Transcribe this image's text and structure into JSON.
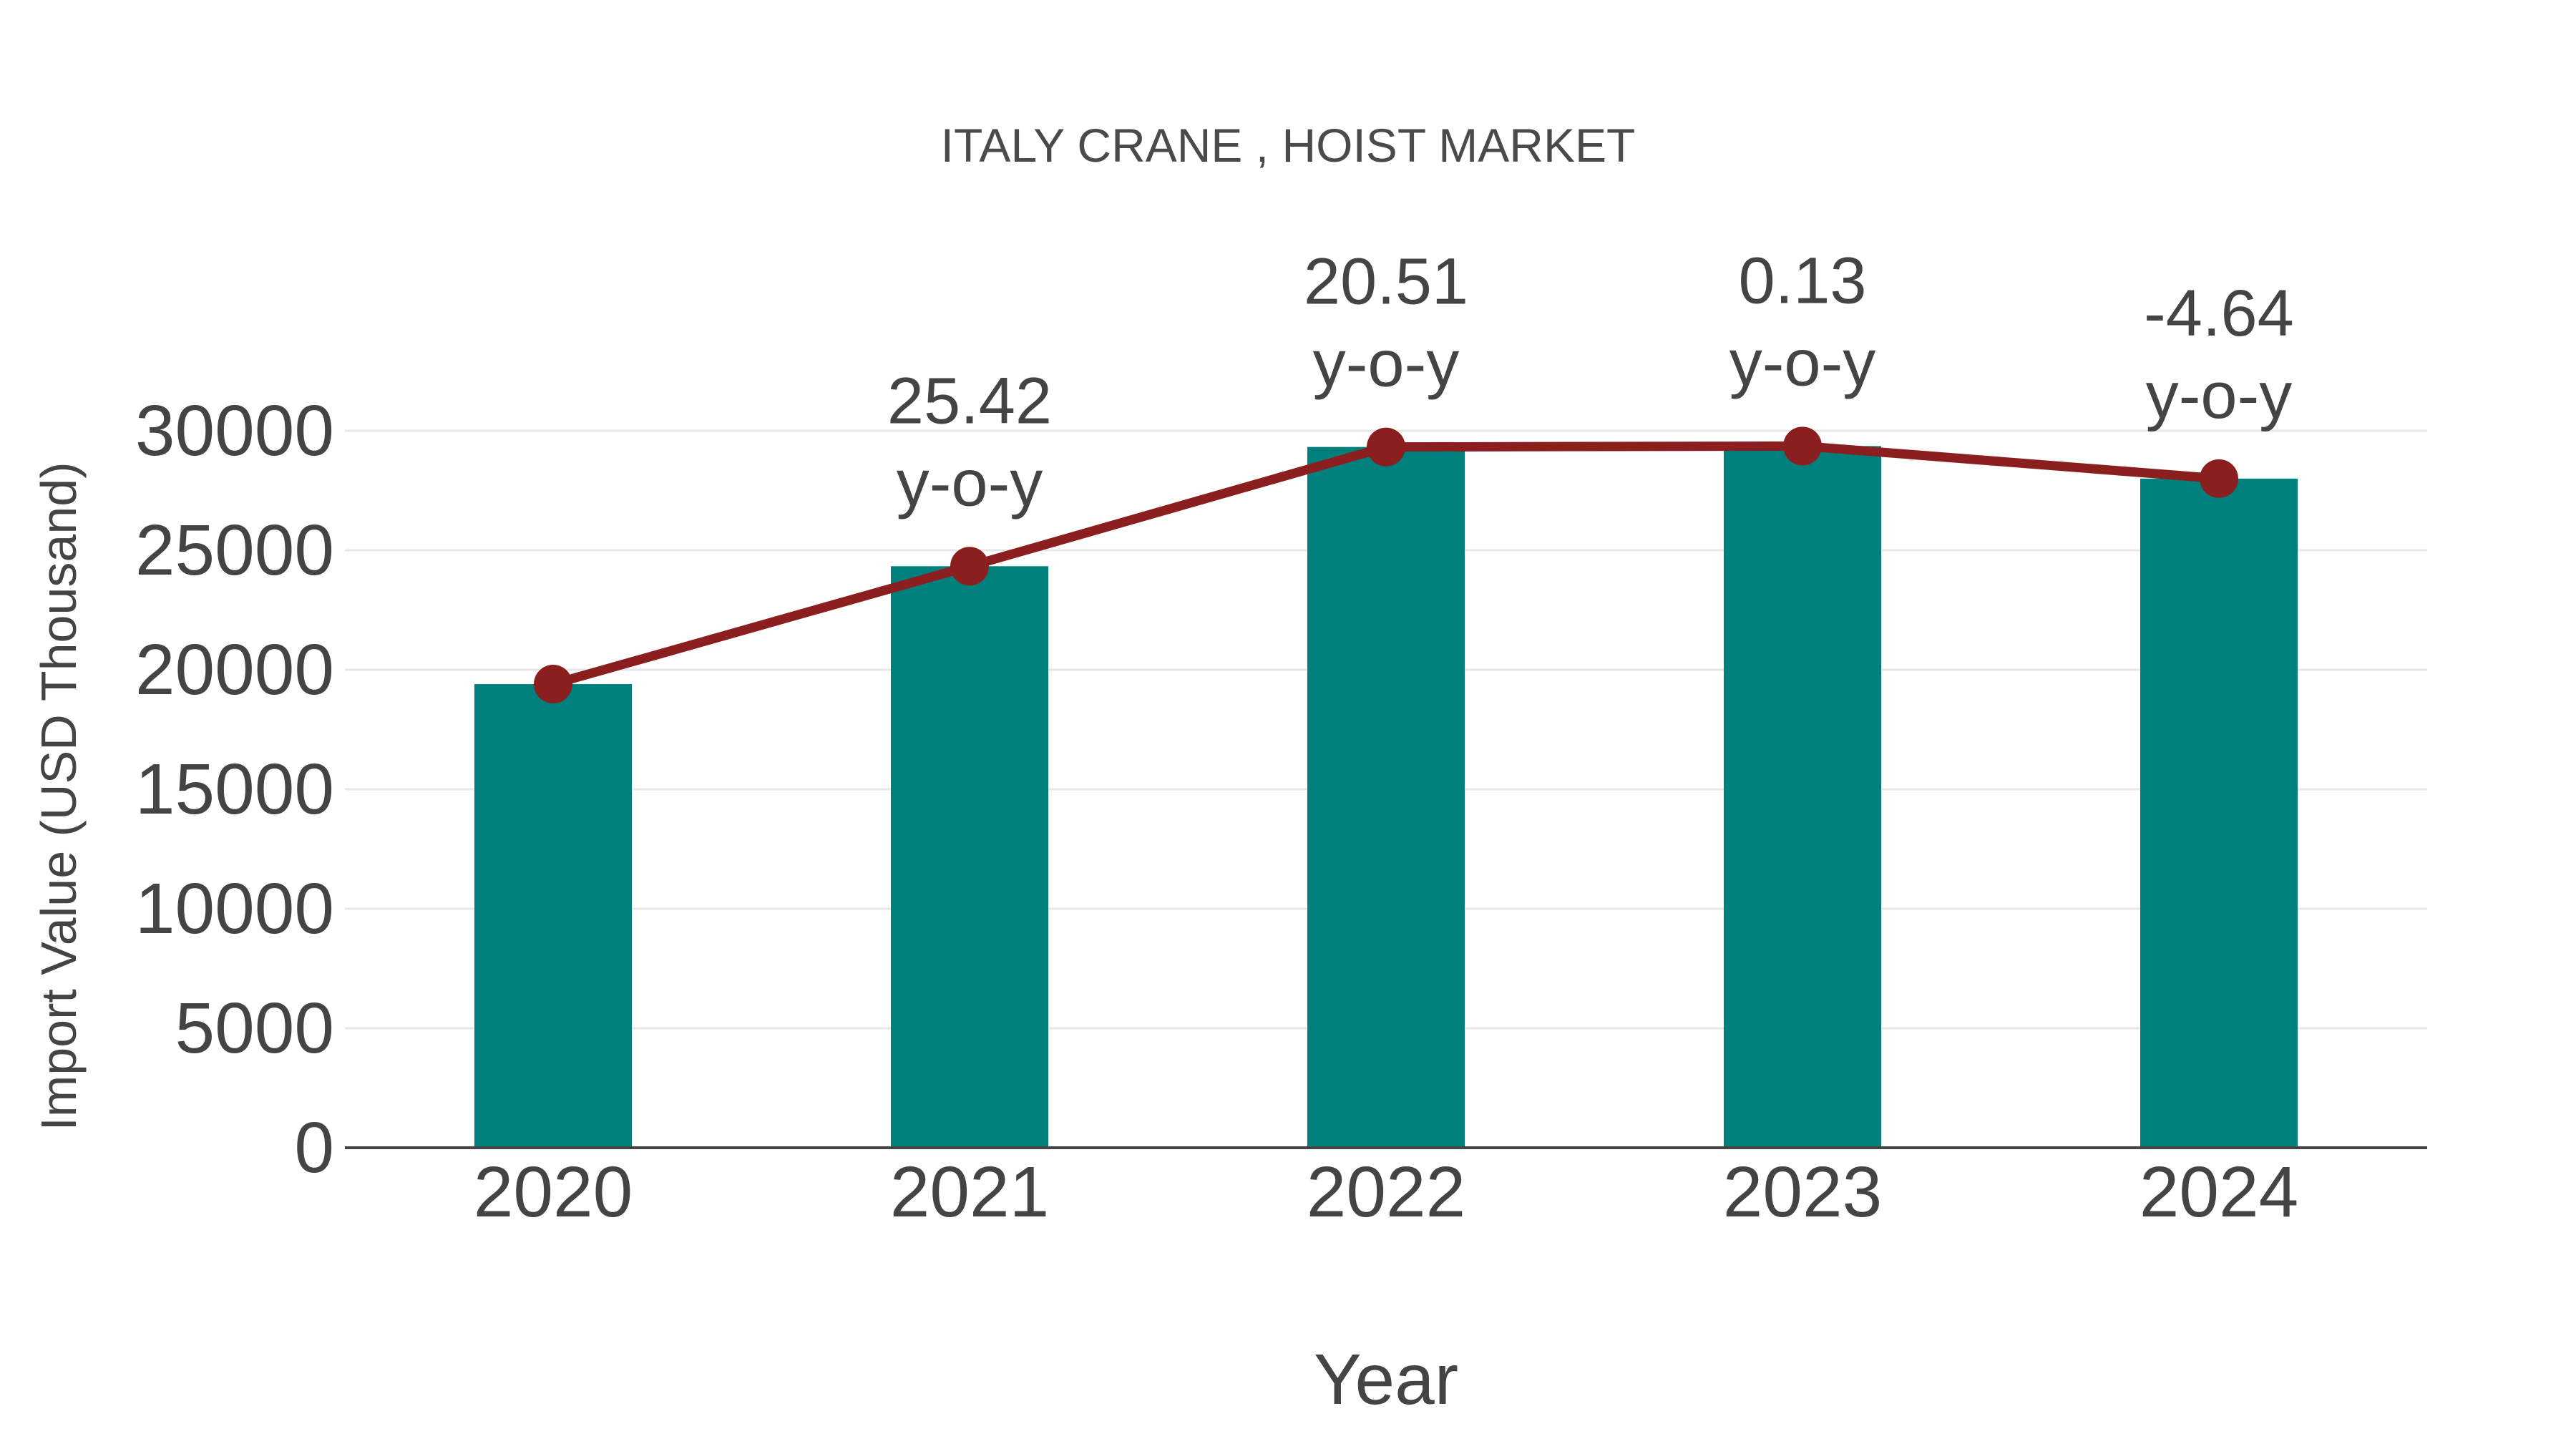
{
  "page": {
    "background": "#ffffff"
  },
  "chart_data": {
    "type": "bar",
    "title": "ITALY CRANE , HOIST MARKET",
    "xlabel": "Year",
    "ylabel": "Import Value (USD Thousand)",
    "categories": [
      "2020",
      "2021",
      "2022",
      "2023",
      "2024"
    ],
    "values": [
      19400,
      24332,
      29322,
      29360,
      27998
    ],
    "line_overlay": {
      "name": "import-value-trend",
      "values": [
        19400,
        24332,
        29322,
        29360,
        27998
      ],
      "color": "#8B1E1E"
    },
    "yoy_annotations": [
      {
        "index": 1,
        "value": "25.42",
        "suffix": "y-o-y"
      },
      {
        "index": 2,
        "value": "20.51",
        "suffix": "y-o-y"
      },
      {
        "index": 3,
        "value": "0.13",
        "suffix": "y-o-y"
      },
      {
        "index": 4,
        "value": "-4.64",
        "suffix": "y-o-y"
      }
    ],
    "ylim": [
      0,
      30000
    ],
    "yticks": [
      0,
      5000,
      10000,
      15000,
      20000,
      25000,
      30000
    ],
    "grid": "horizontal",
    "legend": "none",
    "bar_color": "#00807D",
    "line_color": "#8B1E1E",
    "text_color": "#444444",
    "grid_color": "#e8e8e8",
    "axis_color": "#444444"
  }
}
